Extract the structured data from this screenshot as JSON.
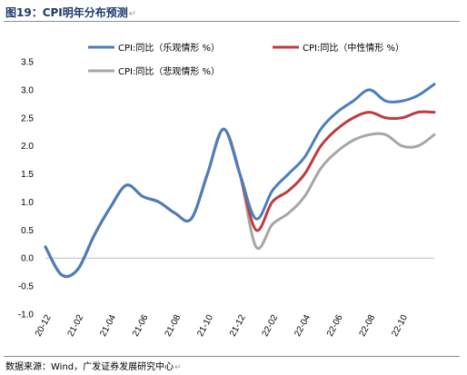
{
  "figure": {
    "title": "图19：CPI明年分布预测",
    "source": "数据来源：Wind，广发证券发展研究中心",
    "edit_mark": "↵"
  },
  "colors": {
    "optimistic": "#4a7ebf",
    "neutral": "#be3b3e",
    "pessimistic": "#a6a6a6",
    "title": "#1a3a6b"
  },
  "chart_data": {
    "type": "line",
    "title": "",
    "xlabel": "",
    "ylabel": "",
    "ylim": [
      -1.0,
      3.5
    ],
    "yticks": [
      -1.0,
      -0.5,
      0.0,
      0.5,
      1.0,
      1.5,
      2.0,
      2.5,
      3.0,
      3.5
    ],
    "x": [
      "20-12",
      "21-01",
      "21-02",
      "21-03",
      "21-04",
      "21-05",
      "21-06",
      "21-07",
      "21-08",
      "21-09",
      "21-10",
      "21-11",
      "21-12",
      "22-01",
      "22-02",
      "22-03",
      "22-04",
      "22-05",
      "22-06",
      "22-07",
      "22-08",
      "22-09",
      "22-10",
      "22-11",
      "22-12"
    ],
    "xticks": [
      "20-12",
      "21-02",
      "21-04",
      "21-06",
      "21-08",
      "21-10",
      "21-12",
      "22-02",
      "22-04",
      "22-06",
      "22-08",
      "22-10"
    ],
    "grid": false,
    "legend_position": "top",
    "series": [
      {
        "name": "CPI:同比（乐观情形 %）",
        "color_key": "optimistic",
        "values": [
          0.2,
          -0.3,
          -0.2,
          0.4,
          0.9,
          1.3,
          1.1,
          1.0,
          0.8,
          0.7,
          1.5,
          2.3,
          1.5,
          0.7,
          1.2,
          1.5,
          1.8,
          2.3,
          2.6,
          2.8,
          3.0,
          2.8,
          2.8,
          2.9,
          3.1
        ]
      },
      {
        "name": "CPI:同比（中性情形 %）",
        "color_key": "neutral",
        "values": [
          0.2,
          -0.3,
          -0.2,
          0.4,
          0.9,
          1.3,
          1.1,
          1.0,
          0.8,
          0.7,
          1.5,
          2.3,
          1.5,
          0.5,
          1.0,
          1.2,
          1.5,
          2.0,
          2.3,
          2.5,
          2.6,
          2.5,
          2.5,
          2.6,
          2.6
        ]
      },
      {
        "name": "CPI:同比（悲观情形 %）",
        "color_key": "pessimistic",
        "values": [
          0.2,
          -0.3,
          -0.2,
          0.4,
          0.9,
          1.3,
          1.1,
          1.0,
          0.8,
          0.7,
          1.5,
          2.3,
          1.5,
          0.2,
          0.6,
          0.8,
          1.1,
          1.6,
          1.9,
          2.1,
          2.2,
          2.2,
          2.0,
          2.0,
          2.2
        ]
      }
    ]
  }
}
